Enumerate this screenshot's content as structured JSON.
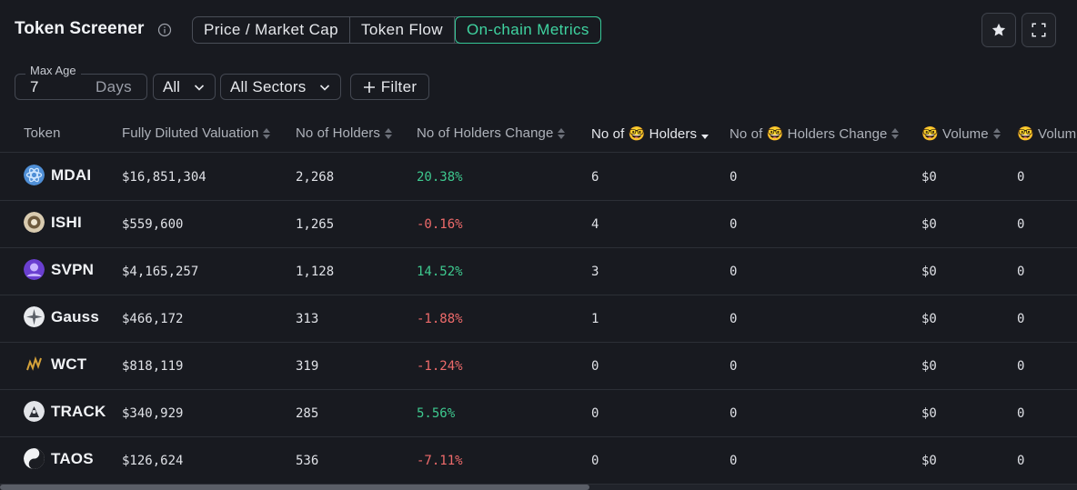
{
  "header": {
    "title": "Token Screener",
    "tabs": [
      {
        "label": "Price / Market Cap",
        "active": false
      },
      {
        "label": "Token Flow",
        "active": false
      },
      {
        "label": "On-chain Metrics",
        "active": true
      }
    ],
    "accent_color": "#3fd3a0"
  },
  "filters": {
    "max_age_label": "Max Age",
    "max_age_value": "7",
    "max_age_unit": "Days",
    "chain_select": "All",
    "sector_select": "All Sectors",
    "filter_button": "Filter"
  },
  "table": {
    "columns": [
      {
        "label": "Token",
        "sortable": false
      },
      {
        "label": "Fully Diluted Valuation",
        "sortable": true
      },
      {
        "label": "No of Holders",
        "sortable": true
      },
      {
        "label": "No of Holders Change",
        "sortable": true
      },
      {
        "label": "No of 🤓 Holders",
        "sortable": true,
        "sorted": "desc"
      },
      {
        "label": "No of 🤓 Holders Change",
        "sortable": true
      },
      {
        "label": "🤓 Volume",
        "sortable": true
      },
      {
        "label": "🤓 Volum",
        "sortable": false
      }
    ],
    "rows": [
      {
        "token": "MDAI",
        "icon": "mdai-token-icon",
        "fdv": "$16,851,304",
        "holders": "2,268",
        "holders_change": "20.38%",
        "change_sign": "pos",
        "smart_holders": "6",
        "smart_holders_change": "0",
        "smart_volume": "$0",
        "smart_volume_2": "0"
      },
      {
        "token": "ISHI",
        "icon": "ishi-token-icon",
        "fdv": "$559,600",
        "holders": "1,265",
        "holders_change": "-0.16%",
        "change_sign": "neg",
        "smart_holders": "4",
        "smart_holders_change": "0",
        "smart_volume": "$0",
        "smart_volume_2": "0"
      },
      {
        "token": "SVPN",
        "icon": "svpn-token-icon",
        "fdv": "$4,165,257",
        "holders": "1,128",
        "holders_change": "14.52%",
        "change_sign": "pos",
        "smart_holders": "3",
        "smart_holders_change": "0",
        "smart_volume": "$0",
        "smart_volume_2": "0"
      },
      {
        "token": "Gauss",
        "icon": "gauss-token-icon",
        "fdv": "$466,172",
        "holders": "313",
        "holders_change": "-1.88%",
        "change_sign": "neg",
        "smart_holders": "1",
        "smart_holders_change": "0",
        "smart_volume": "$0",
        "smart_volume_2": "0"
      },
      {
        "token": "WCT",
        "icon": "wct-token-icon",
        "fdv": "$818,119",
        "holders": "319",
        "holders_change": "-1.24%",
        "change_sign": "neg",
        "smart_holders": "0",
        "smart_holders_change": "0",
        "smart_volume": "$0",
        "smart_volume_2": "0"
      },
      {
        "token": "TRACK",
        "icon": "track-token-icon",
        "fdv": "$340,929",
        "holders": "285",
        "holders_change": "5.56%",
        "change_sign": "pos",
        "smart_holders": "0",
        "smart_holders_change": "0",
        "smart_volume": "$0",
        "smart_volume_2": "0"
      },
      {
        "token": "TAOS",
        "icon": "taos-token-icon",
        "fdv": "$126,624",
        "holders": "536",
        "holders_change": "-7.11%",
        "change_sign": "neg",
        "smart_holders": "0",
        "smart_holders_change": "0",
        "smart_volume": "$0",
        "smart_volume_2": "0"
      }
    ]
  },
  "colors": {
    "positive": "#3ec98f",
    "negative": "#ef6b6b",
    "background": "#181a20"
  }
}
